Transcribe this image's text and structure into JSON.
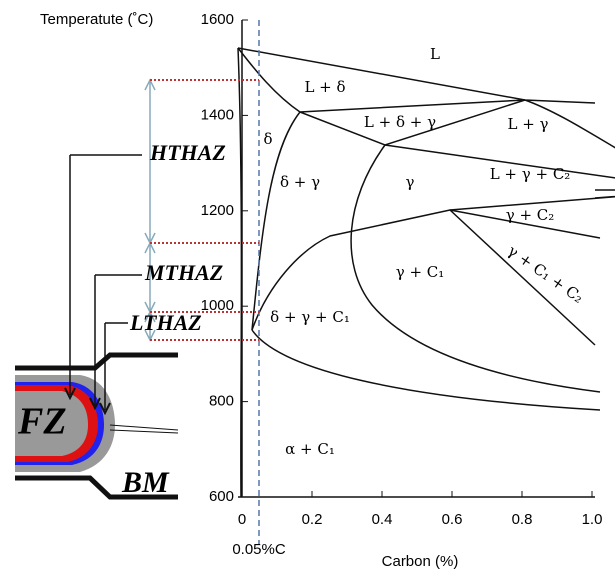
{
  "axes": {
    "y_title": "Temperatute (˚C)",
    "x_title": "Carbon (%)",
    "yticks": [
      600,
      800,
      1000,
      1200,
      1400,
      1600
    ],
    "xticks": [
      0,
      0.2,
      0.4,
      0.6,
      0.8,
      {
        "value": 1,
        "label": "1.0"
      }
    ],
    "marker_label": "0.05%C"
  },
  "regions": [
    "L",
    "L + δ",
    "δ",
    "L + δ + γ",
    "L + γ",
    "δ + γ",
    "γ",
    "L + γ + C₂",
    "γ + C₂",
    "γ + C₁",
    "γ + C₁ + C₂",
    "δ + γ + C₁",
    "α + C₁"
  ],
  "zones": {
    "htaz": "HTHAZ",
    "mthaz": "MTHAZ",
    "lthaz": "LTHAZ",
    "fz": "FZ",
    "bm": "BM"
  }
}
